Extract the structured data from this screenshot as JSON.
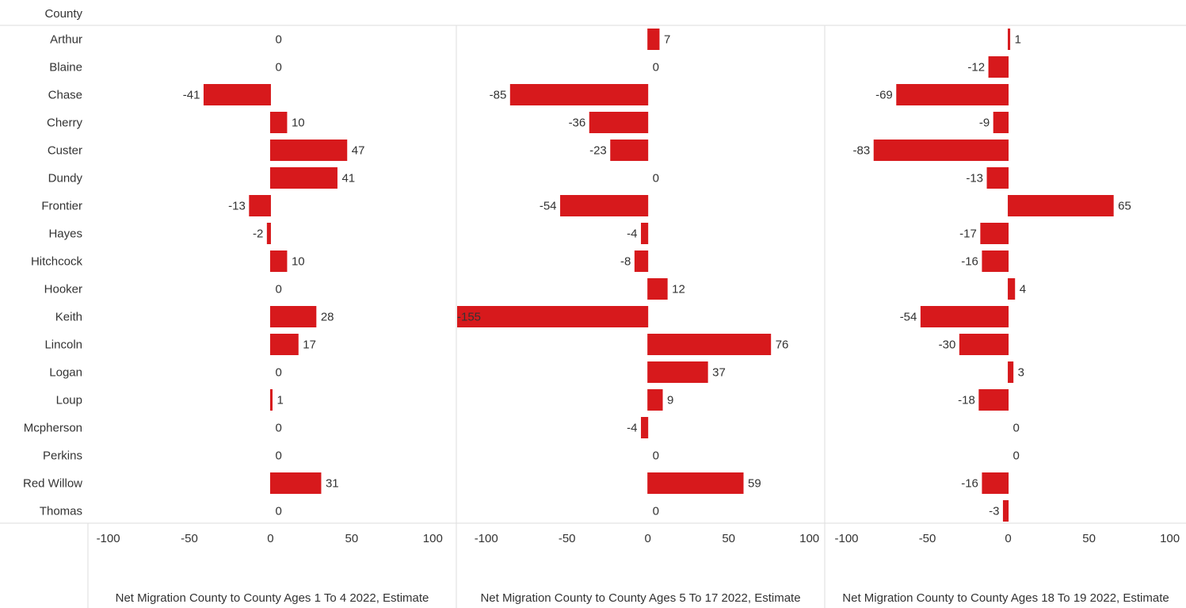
{
  "chart_data": {
    "type": "bar",
    "y_label": "County",
    "categories": [
      "Arthur",
      "Blaine",
      "Chase",
      "Cherry",
      "Custer",
      "Dundy",
      "Frontier",
      "Hayes",
      "Hitchcock",
      "Hooker",
      "Keith",
      "Lincoln",
      "Logan",
      "Loup",
      "Mcpherson",
      "Perkins",
      "Red Willow",
      "Thomas"
    ],
    "series": [
      {
        "name": "Net Migration County to County Ages 1 To 4 2022, Estimate",
        "color": "#d7191c",
        "values": [
          0,
          0,
          -41,
          10,
          47,
          41,
          -13,
          -2,
          10,
          0,
          28,
          17,
          0,
          1,
          0,
          0,
          31,
          0
        ],
        "xlim": [
          -112,
          114
        ],
        "xticks": [
          -100,
          -50,
          0,
          50,
          100
        ]
      },
      {
        "name": "Net Migration County to County Ages 5 To 17 2022, Estimate",
        "color": "#d7191c",
        "values": [
          7,
          0,
          -85,
          -36,
          -23,
          0,
          -54,
          -4,
          -8,
          12,
          -155,
          76,
          37,
          9,
          -4,
          0,
          59,
          0
        ],
        "xlim": [
          -118,
          109
        ],
        "xticks": [
          -100,
          -50,
          0,
          50,
          100
        ]
      },
      {
        "name": "Net Migration County to County Ages 18 To 19 2022, Estimate",
        "color": "#d7191c",
        "values": [
          1,
          -12,
          -69,
          -9,
          -83,
          -13,
          65,
          -17,
          -16,
          4,
          -54,
          -30,
          3,
          -18,
          0,
          0,
          -16,
          -3
        ],
        "xlim": [
          -113,
          110
        ],
        "xticks": [
          -100,
          -50,
          0,
          50,
          100
        ]
      }
    ]
  }
}
